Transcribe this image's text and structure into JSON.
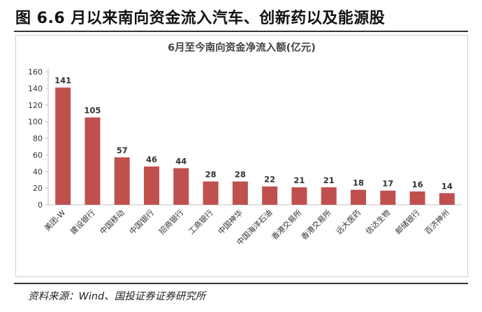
{
  "figure_title": "图 6.6 月以来南向资金流入汽车、创新药以及能源股",
  "source": "资料来源：Wind、国投证券证券研究所",
  "colors": {
    "bar": "#c0504d",
    "axis": "#bfbfbf",
    "text": "#333333"
  },
  "chart_data": {
    "type": "bar",
    "title": "6月至今南向资金净流入额(亿元)",
    "xlabel": "",
    "ylabel": "",
    "ylim": [
      0,
      160
    ],
    "yticks": [
      0,
      20,
      40,
      60,
      80,
      100,
      120,
      140,
      160
    ],
    "grid": false,
    "legend": "none",
    "categories": [
      "美团-W",
      "建设银行",
      "中国移动",
      "中国银行",
      "招商银行",
      "工商银行",
      "中国神华",
      "中国海洋石油",
      "香港交易所",
      "香港交易所",
      "远大医药",
      "信达生物",
      "邮储银行",
      "百济神州"
    ],
    "values": [
      141,
      105,
      57,
      46,
      44,
      28,
      28,
      22,
      21,
      21,
      18,
      17,
      16,
      14
    ]
  }
}
